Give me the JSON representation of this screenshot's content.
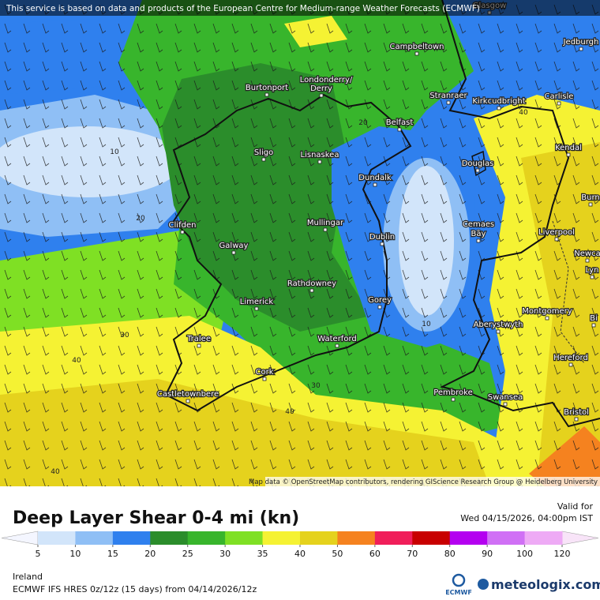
{
  "banner": "This service is based on data and products of the European Centre for Medium-range Weather Forecasts (ECMWF)",
  "map": {
    "places": [
      "Glasgow",
      "Campbeltown",
      "Jedburgh",
      "Burtonport",
      "Londonderry/",
      "Derry",
      "Stranraer",
      "Kirkcudbright",
      "Carlisle",
      "Belfast",
      "Kendal",
      "Sligo",
      "Lisnaskea",
      "Douglas",
      "Dundalk",
      "Burn",
      "Clifden",
      "Mullingar",
      "Cemaes",
      "Bay",
      "Liverpool",
      "Dublin",
      "Galway",
      "Newca",
      "Lyn",
      "Rathdowney",
      "Limerick",
      "Gorey",
      "Montgomery",
      "Bi",
      "Aberystwyth",
      "Tralee",
      "Waterford",
      "Hereford",
      "Cork",
      "Pembroke",
      "Castletownbere",
      "Swansea",
      "Bristol"
    ],
    "contour_labels": [
      10,
      10,
      20,
      20,
      30,
      30,
      40,
      40,
      40,
      40
    ],
    "attribution": "Map data © OpenStreetMap contributors, rendering GIScience Research Group @ Heidelberg University"
  },
  "legend": {
    "title": "Deep Layer Shear 0-4 mi (kn)",
    "valid_label": "Valid for",
    "valid_time": "Wed 04/15/2026, 04:00pm IST",
    "ticks": [
      5,
      10,
      15,
      20,
      25,
      30,
      35,
      40,
      50,
      60,
      70,
      80,
      90,
      100,
      120
    ],
    "colors": [
      "#d2e5fa",
      "#8fbff5",
      "#2f80ee",
      "#2b8d2b",
      "#38b52c",
      "#7fe024",
      "#f5f233",
      "#e5d21d",
      "#f5821f",
      "#f01e5a",
      "#c80000",
      "#b400f0",
      "#d070f5",
      "#eeaaf5"
    ]
  },
  "footer": {
    "region": "Ireland",
    "model": "ECMWF IFS HRES 0z/12z (15 days) from  04/14/2026/12z",
    "ecmwf": "ECMWF",
    "brand": "meteologix.com"
  }
}
